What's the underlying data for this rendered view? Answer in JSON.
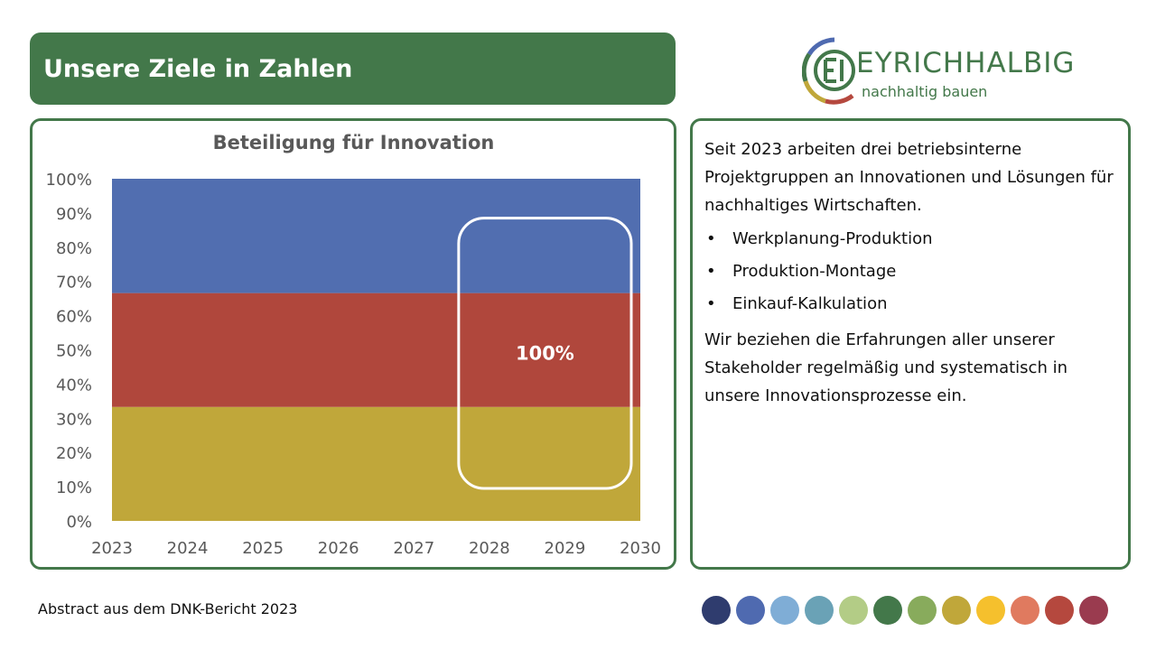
{
  "header": {
    "title": "Unsere Ziele in Zahlen"
  },
  "logo": {
    "wordmark": "EYRICHHALBIG",
    "subtitle": "nachhaltig bauen"
  },
  "chart_data": {
    "type": "area",
    "title": "Beteiligung für Innovation",
    "x": [
      "2023",
      "2024",
      "2025",
      "2026",
      "2027",
      "2028",
      "2029",
      "2030"
    ],
    "ylim": [
      0,
      100
    ],
    "yticks": [
      "0%",
      "10%",
      "20%",
      "30%",
      "40%",
      "50%",
      "60%",
      "70%",
      "80%",
      "90%",
      "100%"
    ],
    "stacked": true,
    "series": [
      {
        "color": "#c0a73a",
        "values": [
          33.3,
          33.3,
          33.3,
          33.3,
          33.3,
          33.3,
          33.3,
          33.3
        ]
      },
      {
        "color": "#b0473c",
        "values": [
          33.3,
          33.3,
          33.3,
          33.3,
          33.3,
          33.3,
          33.3,
          33.3
        ]
      },
      {
        "color": "#516eb0",
        "values": [
          33.4,
          33.4,
          33.4,
          33.4,
          33.4,
          33.4,
          33.4,
          33.4
        ]
      }
    ],
    "annotation": {
      "text": "100%",
      "x_from": "2028",
      "x_to": "2030"
    },
    "grid": false,
    "legend": "none"
  },
  "text": {
    "intro": "Seit 2023 arbeiten drei betriebsinterne Projektgruppen an Innovationen und Lösungen für nachhaltiges Wirtschaften.",
    "bullets": [
      "Werkplanung-Produktion",
      "Produktion-Montage",
      "Einkauf-Kalkulation"
    ],
    "outro": "Wir beziehen die Erfahrungen aller unserer Stakeholder regelmäßig und systematisch in unsere Innovationsprozesse ein."
  },
  "footer": {
    "source": "Abstract aus dem DNK-Bericht 2023"
  },
  "palette": [
    "#2f3c6e",
    "#4f6ab0",
    "#7fadd6",
    "#6aa2b6",
    "#b3cc86",
    "#43784a",
    "#88ab5c",
    "#c0a73a",
    "#f5c02d",
    "#e07a5f",
    "#b5483e",
    "#9a3b4f"
  ]
}
